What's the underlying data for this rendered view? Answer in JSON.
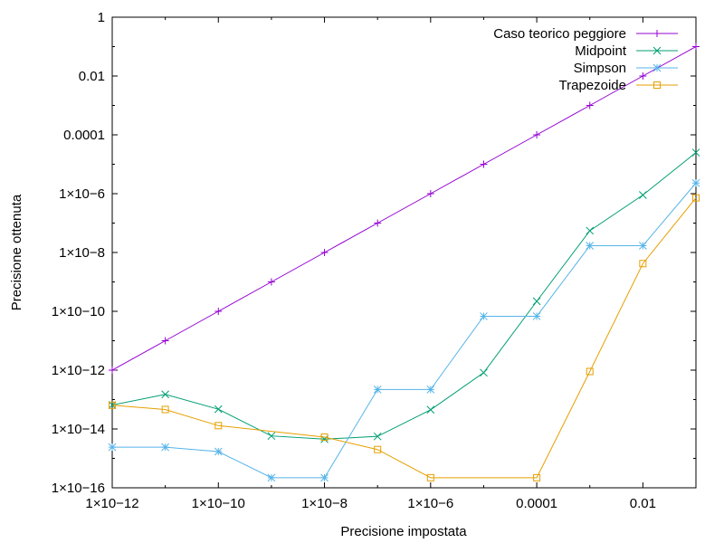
{
  "chart_data": {
    "type": "line",
    "x_scale": "log",
    "y_scale": "log",
    "xlabel": "Precisione impostata",
    "ylabel": "Precisione ottenuta",
    "xlim": [
      1e-12,
      0.1
    ],
    "ylim": [
      1e-16,
      1
    ],
    "grid": false,
    "legend_position": "top-right",
    "x_ticks": [
      {
        "value": 1e-12,
        "label": "1×10−12"
      },
      {
        "value": 1e-10,
        "label": "1×10−10"
      },
      {
        "value": 1e-08,
        "label": "1×10−8"
      },
      {
        "value": 1e-06,
        "label": "1×10−6"
      },
      {
        "value": 0.0001,
        "label": "0.0001"
      },
      {
        "value": 0.01,
        "label": "0.01"
      }
    ],
    "y_ticks": [
      {
        "value": 1,
        "label": "1"
      },
      {
        "value": 0.01,
        "label": "0.01"
      },
      {
        "value": 0.0001,
        "label": "0.0001"
      },
      {
        "value": 1e-06,
        "label": "1×10−6"
      },
      {
        "value": 1e-08,
        "label": "1×10−8"
      },
      {
        "value": 1e-10,
        "label": "1×10−10"
      },
      {
        "value": 1e-12,
        "label": "1×10−12"
      },
      {
        "value": 1e-14,
        "label": "1×10−14"
      },
      {
        "value": 1e-16,
        "label": "1×10−16"
      }
    ],
    "series": [
      {
        "name": "Caso teorico peggiore",
        "color": "#9400d3",
        "marker": "plus",
        "points": [
          [
            1e-12,
            1e-12
          ],
          [
            1e-11,
            1e-11
          ],
          [
            1e-10,
            1e-10
          ],
          [
            1e-09,
            1e-09
          ],
          [
            1e-08,
            1e-08
          ],
          [
            1e-07,
            1e-07
          ],
          [
            1e-06,
            1e-06
          ],
          [
            1e-05,
            1e-05
          ],
          [
            0.0001,
            0.0001
          ],
          [
            0.001,
            0.001
          ],
          [
            0.01,
            0.01
          ],
          [
            0.1,
            0.1
          ]
        ]
      },
      {
        "name": "Midpoint",
        "color": "#009e73",
        "marker": "cross",
        "points": [
          [
            1e-12,
            6.5e-14
          ],
          [
            1e-11,
            1.5e-13
          ],
          [
            1e-10,
            4.7e-14
          ],
          [
            1e-09,
            5.8e-15
          ],
          [
            1e-08,
            4.5e-15
          ],
          [
            1e-07,
            5.6e-15
          ],
          [
            1e-06,
            4.5e-14
          ],
          [
            1e-05,
            8.2e-13
          ],
          [
            0.0001,
            2.2e-10
          ],
          [
            0.001,
            5.5e-08
          ],
          [
            0.01,
            9e-07
          ],
          [
            0.1,
            2.5e-05
          ]
        ]
      },
      {
        "name": "Simpson",
        "color": "#56b4e9",
        "marker": "star",
        "points": [
          [
            1e-12,
            2.4e-15
          ],
          [
            1e-11,
            2.4e-15
          ],
          [
            1e-10,
            1.7e-15
          ],
          [
            1e-09,
            2.2e-16
          ],
          [
            1e-08,
            2.2e-16
          ],
          [
            1e-07,
            2.2e-13
          ],
          [
            1e-06,
            2.2e-13
          ],
          [
            1e-05,
            6.8e-11
          ],
          [
            0.0001,
            6.8e-11
          ],
          [
            0.001,
            1.7e-08
          ],
          [
            0.01,
            1.7e-08
          ],
          [
            0.1,
            2.3e-06
          ]
        ]
      },
      {
        "name": "Trapezoide",
        "color": "#e69f00",
        "marker": "square",
        "points": [
          [
            1e-12,
            6.4e-14
          ],
          [
            1e-11,
            4.6e-14
          ],
          [
            1e-10,
            1.3e-14
          ],
          [
            1e-08,
            5.3e-15
          ],
          [
            1e-07,
            2e-15
          ],
          [
            1e-06,
            2.2e-16
          ],
          [
            0.0001,
            2.2e-16
          ],
          [
            0.001,
            9e-13
          ],
          [
            0.01,
            4.2e-09
          ],
          [
            0.1,
            7.2e-07
          ]
        ]
      }
    ]
  }
}
